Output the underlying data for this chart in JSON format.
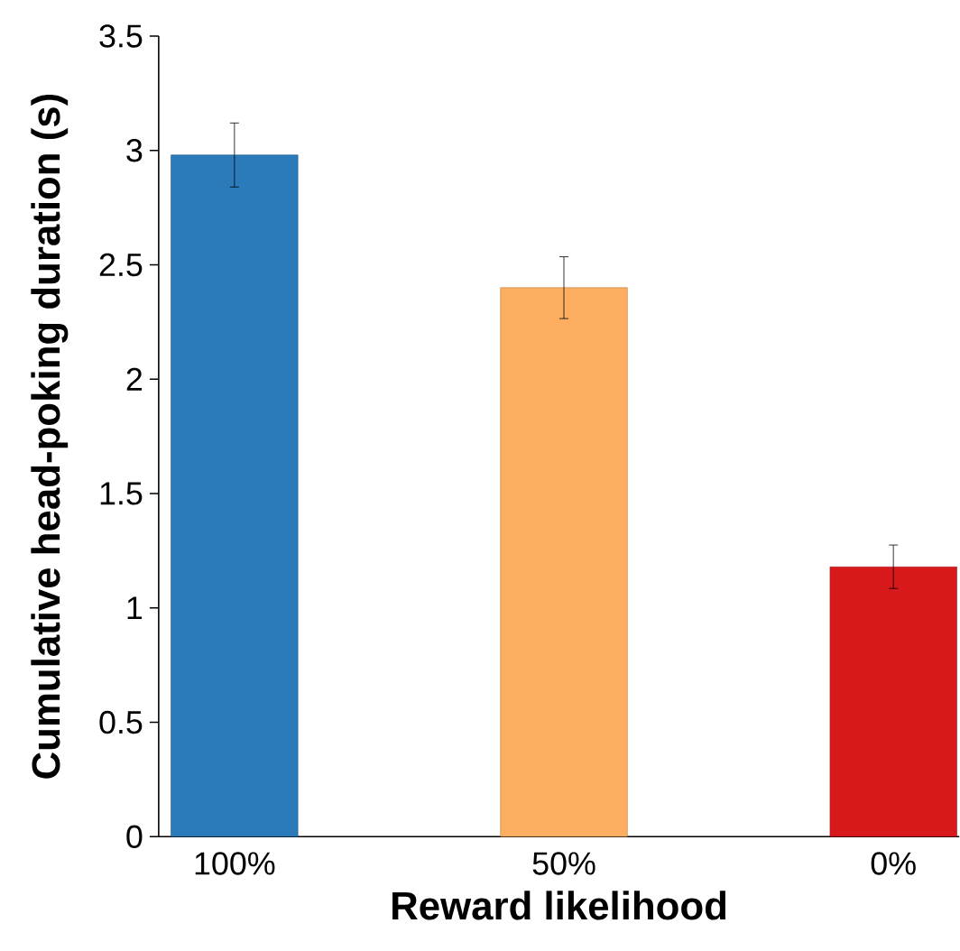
{
  "chart_data": {
    "type": "bar",
    "xlabel": "Reward likelihood",
    "ylabel": "Cumulative head-poking duration (s)",
    "categories": [
      "100%",
      "50%",
      "0%"
    ],
    "values": [
      2.98,
      2.4,
      1.18
    ],
    "errors": [
      0.14,
      0.135,
      0.095
    ],
    "colors": [
      "#2b7bba",
      "#fdae61",
      "#d7191c"
    ],
    "ylim": [
      0,
      3.5
    ],
    "yticks": [
      0,
      0.5,
      1,
      1.5,
      2,
      2.5,
      3,
      3.5
    ],
    "grid": false
  }
}
